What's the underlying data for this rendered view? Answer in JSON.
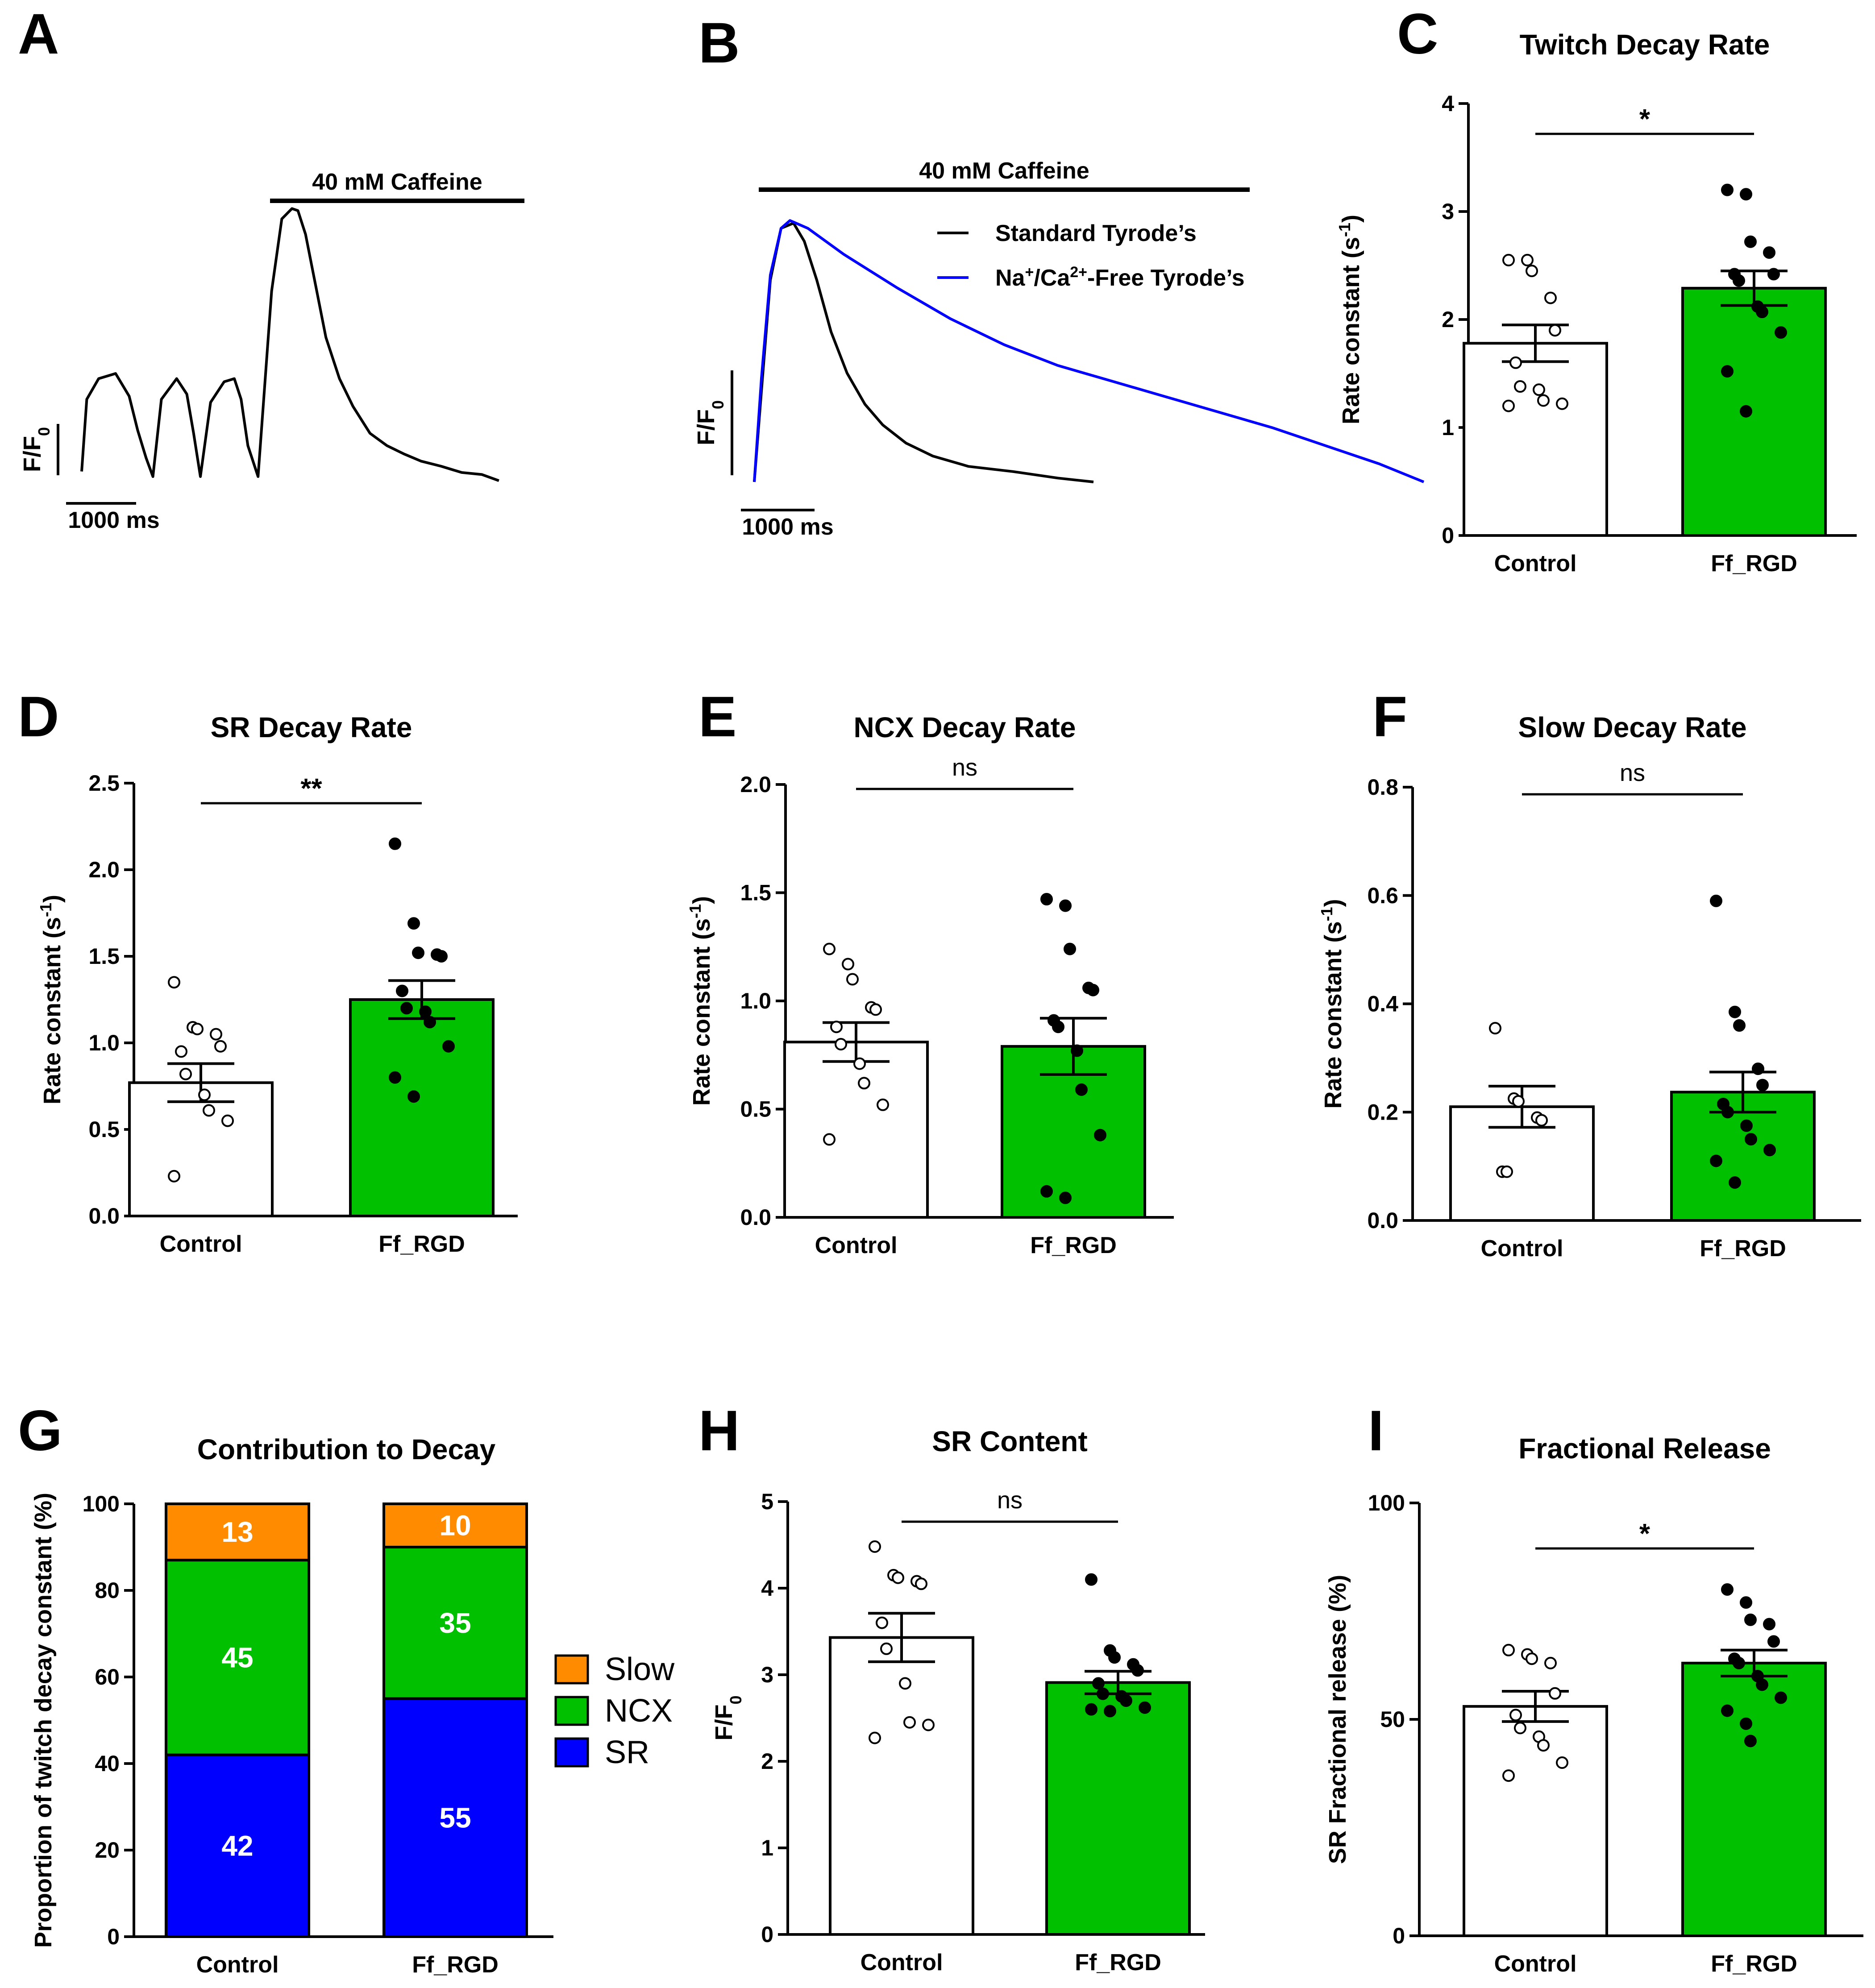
{
  "colors": {
    "control": "#ffffff",
    "treated": "#00c000",
    "slow": "#ff8c00",
    "ncx": "#00c000",
    "sr": "#0000ff",
    "black": "#000000",
    "blue_trace": "#0000ff"
  },
  "chart_data": [
    {
      "id": "A",
      "panel_label": "A",
      "type": "line",
      "annotation": "40 mM Caffeine",
      "ylabel": "F/F₀",
      "ylabel_main": "F/F",
      "ylabel_sub": "0",
      "scalebar_x": "1000 ms",
      "series": [
        {
          "name": "trace",
          "x": [
            0,
            30,
            100,
            200,
            280,
            330,
            380,
            420,
            470,
            560,
            620,
            660,
            700,
            760,
            840,
            900,
            940,
            980,
            1040,
            1120,
            1180,
            1240,
            1275,
            1320,
            1380,
            1440,
            1520,
            1600,
            1700,
            1800,
            1900,
            2000,
            2120,
            2240,
            2360,
            2460
          ],
          "y": [
            0.05,
            0.75,
            0.95,
            1.0,
            0.78,
            0.45,
            0.18,
            0.0,
            0.75,
            0.95,
            0.8,
            0.42,
            0.0,
            0.72,
            0.92,
            0.95,
            0.75,
            0.3,
            0.0,
            1.8,
            2.5,
            2.6,
            2.58,
            2.35,
            1.85,
            1.35,
            0.95,
            0.68,
            0.42,
            0.3,
            0.22,
            0.15,
            0.1,
            0.04,
            0.02,
            -0.04
          ]
        }
      ]
    },
    {
      "id": "B",
      "panel_label": "B",
      "type": "line",
      "annotation": "40 mM Caffeine",
      "ylabel": "F/F₀",
      "ylabel_main": "F/F",
      "ylabel_sub": "0",
      "scalebar_x": "1000 ms",
      "series": [
        {
          "name": "Standard Tyrode’s",
          "color": "#000000",
          "x": [
            0,
            40,
            90,
            150,
            220,
            280,
            350,
            430,
            520,
            620,
            720,
            850,
            1000,
            1200,
            1450,
            1700,
            1900
          ],
          "y": [
            0.0,
            0.35,
            0.78,
            0.98,
            1.0,
            0.93,
            0.78,
            0.58,
            0.42,
            0.3,
            0.22,
            0.15,
            0.1,
            0.06,
            0.04,
            0.015,
            0.0
          ]
        },
        {
          "name": "Na⁺/Ca²⁺-Free Tyrode’s",
          "name_main": "Na",
          "name_sup1": "+",
          "name_mid": "/Ca",
          "name_sup2": "2+",
          "name_end": "-Free Tyrode’s",
          "color": "#0000ff",
          "x": [
            0,
            40,
            90,
            150,
            200,
            300,
            500,
            800,
            1100,
            1400,
            1700,
            2000,
            2300,
            2600,
            2900,
            3200,
            3500,
            3750
          ],
          "y": [
            0.0,
            0.4,
            0.8,
            0.98,
            1.01,
            0.98,
            0.88,
            0.75,
            0.63,
            0.53,
            0.45,
            0.39,
            0.33,
            0.27,
            0.21,
            0.14,
            0.07,
            0.0
          ]
        }
      ]
    },
    {
      "id": "C",
      "panel_label": "C",
      "type": "bar",
      "title": "Twitch Decay Rate",
      "ylabel": "Rate constant (s⁻¹)",
      "ylabel_main": "Rate constant (s",
      "ylabel_sup": "-1",
      "ylabel_end": ")",
      "ylim": [
        0,
        4
      ],
      "yticks": [
        0,
        1,
        2,
        3,
        4
      ],
      "ytick_labels": [
        "0",
        "1",
        "2",
        "3",
        "4"
      ],
      "categories": [
        "Control",
        "Ff_RGD"
      ],
      "means": [
        1.78,
        2.29
      ],
      "sem": [
        0.17,
        0.16
      ],
      "points": [
        [
          2.55,
          2.55,
          2.45,
          2.2,
          1.9,
          1.6,
          1.38,
          1.35,
          1.25,
          1.22,
          1.2
        ],
        [
          3.2,
          3.16,
          2.72,
          2.62,
          2.42,
          2.42,
          2.36,
          2.12,
          2.07,
          1.88,
          1.52,
          1.15
        ]
      ],
      "significance": "*"
    },
    {
      "id": "D",
      "panel_label": "D",
      "type": "bar",
      "title": "SR Decay Rate",
      "ylabel": "Rate constant (s⁻¹)",
      "ylabel_main": "Rate constant (s",
      "ylabel_sup": "-1",
      "ylabel_end": ")",
      "ylim": [
        0,
        2.5
      ],
      "yticks": [
        0,
        0.5,
        1.0,
        1.5,
        2.0,
        2.5
      ],
      "ytick_labels": [
        "0.0",
        "0.5",
        "1.0",
        "1.5",
        "2.0",
        "2.5"
      ],
      "categories": [
        "Control",
        "Ff_RGD"
      ],
      "means": [
        0.77,
        1.25
      ],
      "sem": [
        0.11,
        0.11
      ],
      "points": [
        [
          1.35,
          1.09,
          1.08,
          1.05,
          0.98,
          0.95,
          0.82,
          0.7,
          0.61,
          0.55,
          0.23
        ],
        [
          2.15,
          1.69,
          1.52,
          1.51,
          1.5,
          1.3,
          1.2,
          1.18,
          1.12,
          0.98,
          0.8,
          0.69
        ]
      ],
      "significance": "**"
    },
    {
      "id": "E",
      "panel_label": "E",
      "type": "bar",
      "title": "NCX Decay Rate",
      "ylabel": "Rate constant (s⁻¹)",
      "ylabel_main": "Rate constant (s",
      "ylabel_sup": "-1",
      "ylabel_end": ")",
      "ylim": [
        0,
        2.0
      ],
      "yticks": [
        0,
        0.5,
        1.0,
        1.5,
        2.0
      ],
      "ytick_labels": [
        "0.0",
        "0.5",
        "1.0",
        "1.5",
        "2.0"
      ],
      "categories": [
        "Control",
        "Ff_RGD"
      ],
      "means": [
        0.81,
        0.79
      ],
      "sem": [
        0.09,
        0.13
      ],
      "points": [
        [
          1.24,
          1.17,
          1.1,
          0.97,
          0.96,
          0.88,
          0.8,
          0.71,
          0.62,
          0.52,
          0.36
        ],
        [
          1.47,
          1.44,
          1.24,
          1.06,
          1.05,
          0.91,
          0.88,
          0.77,
          0.59,
          0.38,
          0.12,
          0.09
        ]
      ],
      "significance": "ns"
    },
    {
      "id": "F",
      "panel_label": "F",
      "type": "bar",
      "title": "Slow Decay Rate",
      "ylabel": "Rate constant (s⁻¹)",
      "ylabel_main": "Rate constant (s",
      "ylabel_sup": "-1",
      "ylabel_end": ")",
      "ylim": [
        0,
        0.8
      ],
      "yticks": [
        0,
        0.2,
        0.4,
        0.6,
        0.8
      ],
      "ytick_labels": [
        "0.0",
        "0.2",
        "0.4",
        "0.6",
        "0.8"
      ],
      "categories": [
        "Control",
        "Ff_RGD"
      ],
      "means": [
        0.21,
        0.237
      ],
      "sem": [
        0.038,
        0.037
      ],
      "points": [
        [
          0.355,
          0.225,
          0.22,
          0.19,
          0.185,
          0.09,
          0.09
        ],
        [
          0.59,
          0.385,
          0.36,
          0.28,
          0.25,
          0.215,
          0.2,
          0.175,
          0.15,
          0.13,
          0.11,
          0.07
        ]
      ],
      "significance": "ns"
    },
    {
      "id": "G",
      "panel_label": "G",
      "type": "bar",
      "stacked": true,
      "title": "Contribution to Decay",
      "ylabel": "Proportion of twitch decay constant (%)",
      "ylim": [
        0,
        100
      ],
      "yticks": [
        0,
        20,
        40,
        60,
        80,
        100
      ],
      "ytick_labels": [
        "0",
        "20",
        "40",
        "60",
        "80",
        "100"
      ],
      "categories": [
        "Control",
        "Ff_RGD"
      ],
      "series": [
        {
          "name": "SR",
          "values": [
            42,
            55
          ],
          "color": "#0000ff"
        },
        {
          "name": "NCX",
          "values": [
            45,
            35
          ],
          "color": "#00c000"
        },
        {
          "name": "Slow",
          "values": [
            13,
            10
          ],
          "color": "#ff8c00"
        }
      ],
      "legend": [
        "Slow",
        "NCX",
        "SR"
      ]
    },
    {
      "id": "H",
      "panel_label": "H",
      "type": "bar",
      "title": "SR Content",
      "ylabel": "F/F₀",
      "ylabel_main": "F/F",
      "ylabel_sub": "0",
      "ylim": [
        0,
        5
      ],
      "yticks": [
        0,
        1,
        2,
        3,
        4,
        5
      ],
      "ytick_labels": [
        "0",
        "1",
        "2",
        "3",
        "4",
        "5"
      ],
      "categories": [
        "Control",
        "Ff_RGD"
      ],
      "means": [
        3.43,
        2.91
      ],
      "sem": [
        0.28,
        0.13
      ],
      "points": [
        [
          4.48,
          4.15,
          4.12,
          4.08,
          4.05,
          3.6,
          3.3,
          2.9,
          2.45,
          2.42,
          2.27
        ],
        [
          4.1,
          3.28,
          3.2,
          3.12,
          3.05,
          2.9,
          2.78,
          2.75,
          2.7,
          2.62,
          2.6,
          2.58
        ]
      ],
      "significance": "ns"
    },
    {
      "id": "I",
      "panel_label": "I",
      "type": "bar",
      "title": "Fractional Release",
      "ylabel": "SR Fractional release (%)",
      "ylim": [
        0,
        100
      ],
      "yticks": [
        0,
        50,
        100
      ],
      "ytick_labels": [
        "0",
        "50",
        "100"
      ],
      "categories": [
        "Control",
        "Ff_RGD"
      ],
      "means": [
        53,
        63
      ],
      "sem": [
        3.5,
        3
      ],
      "points": [
        [
          66,
          65,
          64,
          63,
          56,
          51,
          48,
          46,
          44,
          40,
          37
        ],
        [
          80,
          77,
          73,
          72,
          68,
          64,
          63,
          60,
          58,
          55,
          52,
          49,
          45
        ]
      ],
      "significance": "*"
    }
  ]
}
